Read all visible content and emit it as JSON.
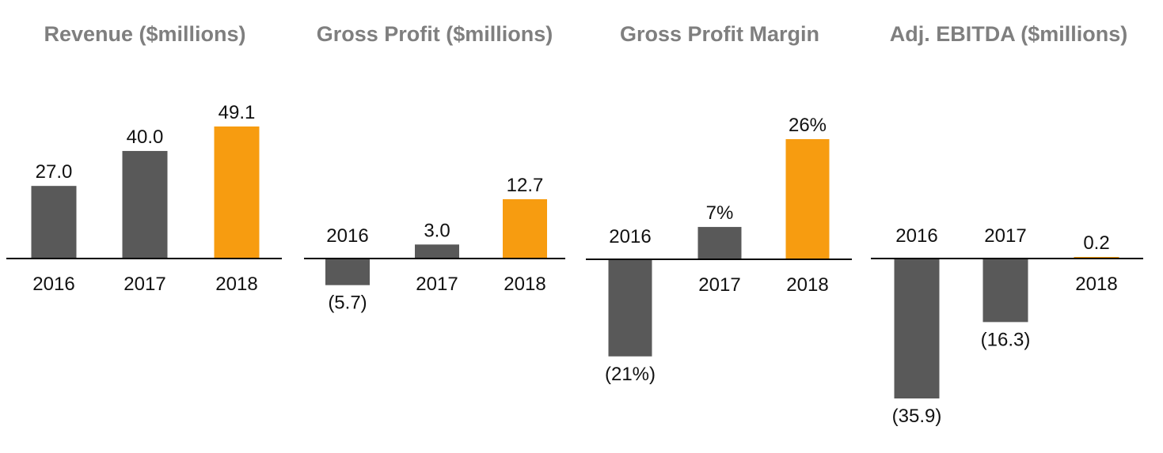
{
  "colors": {
    "base": "#595959",
    "highlight": "#f79c10",
    "axis": "#000000",
    "title": "#7f7f7f"
  },
  "chart_data": [
    {
      "type": "bar",
      "title": "Revenue ($millions)",
      "categories": [
        "2016",
        "2017",
        "2018"
      ],
      "values": [
        27.0,
        40.0,
        49.1
      ],
      "value_labels": [
        "27.0",
        "40.0",
        "49.1"
      ],
      "highlight_index": 2,
      "ylim": [
        0,
        49.1
      ],
      "xlabel": "",
      "ylabel": ""
    },
    {
      "type": "bar",
      "title": "Gross Profit ($millions)",
      "categories": [
        "2016",
        "2017",
        "2018"
      ],
      "values": [
        -5.7,
        3.0,
        12.7
      ],
      "value_labels": [
        "(5.7)",
        "3.0",
        "12.7"
      ],
      "highlight_index": 2,
      "xlabel": "",
      "ylabel": ""
    },
    {
      "type": "bar",
      "title": "Gross Profit Margin",
      "categories": [
        "2016",
        "2017",
        "2018"
      ],
      "values": [
        -21,
        7,
        26
      ],
      "value_labels": [
        "(21%)",
        "7%",
        "26%"
      ],
      "highlight_index": 2,
      "xlabel": "",
      "ylabel": ""
    },
    {
      "type": "bar",
      "title": "Adj. EBITDA ($millions)",
      "categories": [
        "2016",
        "2017",
        "2018"
      ],
      "values": [
        -35.9,
        -16.3,
        0.2
      ],
      "value_labels": [
        "(35.9)",
        "(16.3)",
        "0.2"
      ],
      "highlight_index": 2,
      "xlabel": "",
      "ylabel": ""
    }
  ]
}
